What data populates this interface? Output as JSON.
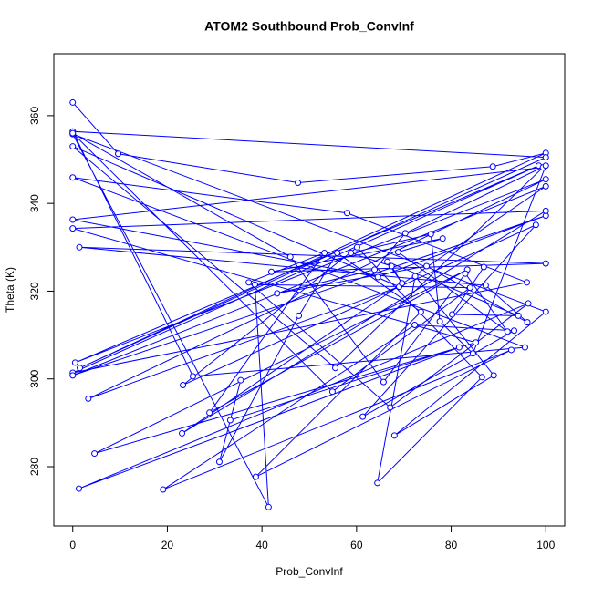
{
  "chart_data": {
    "type": "line",
    "title": "ATOM2 Southbound Prob_ConvInf",
    "xlabel": "Prob_ConvInf",
    "ylabel": "Theta (K)",
    "xlim": [
      -4,
      104
    ],
    "ylim": [
      266.5,
      374.1
    ],
    "xticks": [
      0,
      20,
      40,
      60,
      80,
      100
    ],
    "yticks": [
      280,
      300,
      320,
      340,
      360
    ],
    "markers": true,
    "series": [
      {
        "color": "#0000ff",
        "x": [
          0,
          9.6,
          47.6,
          88.8,
          100,
          1.5,
          100,
          0,
          25.4,
          95.6,
          0,
          58,
          96,
          0,
          98.5,
          0.5,
          100,
          3.3,
          69,
          0,
          55.5,
          99.4,
          0,
          64.5,
          100,
          0,
          100,
          23.1,
          100,
          0,
          85.2,
          4.6,
          83.4,
          28.9,
          53.2,
          37.2,
          67.1,
          96.3,
          1.3,
          81.7,
          33.3,
          35.5,
          31,
          47.8,
          55.9,
          73.6,
          38.7,
          92.7,
          19.1,
          72.3,
          93.3,
          61.3,
          97.9,
          23.3,
          60.1,
          86.5,
          64.4,
          72.4,
          89,
          68,
          100,
          0,
          41.4,
          38.5,
          84,
          54.9,
          0,
          46,
          65.7,
          83,
          91.9,
          68.8,
          78.2,
          42,
          100,
          1.4,
          87.3,
          96.1,
          74.8,
          43.2,
          63.8,
          70.3,
          100,
          84.6,
          77.6,
          75.7,
          58.8,
          67.4,
          69.6,
          66.5,
          94.2,
          80.2,
          86.9
        ],
        "values": [
          363,
          351.3,
          344.7,
          348.4,
          351.5,
          302.5,
          350.5,
          356.4,
          300.6,
          307.2,
          345.9,
          337.8,
          322,
          301.4,
          348.6,
          303.7,
          345.5,
          295.5,
          321,
          353,
          302.5,
          348.2,
          336.3,
          323.2,
          337.2,
          300.8,
          343.9,
          287.6,
          338.3,
          334.3,
          308.3,
          283,
          324.9,
          292.3,
          328.7,
          322,
          293.5,
          317.2,
          275,
          307.2,
          290.6,
          299.7,
          281.1,
          314.4,
          328.7,
          315.3,
          277.7,
          306.6,
          274.8,
          312.3,
          311,
          291.4,
          335.1,
          298.6,
          330,
          300.4,
          276.3,
          323.4,
          300.8,
          287.1,
          315.3,
          355.8,
          270.8,
          321.5,
          320.8,
          297.1,
          356,
          327.8,
          299.3,
          324,
          310.8,
          328.9,
          332,
          324.4,
          326.3,
          330,
          321.3,
          312.9,
          325.7,
          319.5,
          324.9,
          333.2,
          348.6,
          305.8,
          313.1,
          333,
          328.7,
          325.7,
          321.8,
          326.7,
          314.4,
          314.7,
          325.5
        ]
      }
    ]
  }
}
